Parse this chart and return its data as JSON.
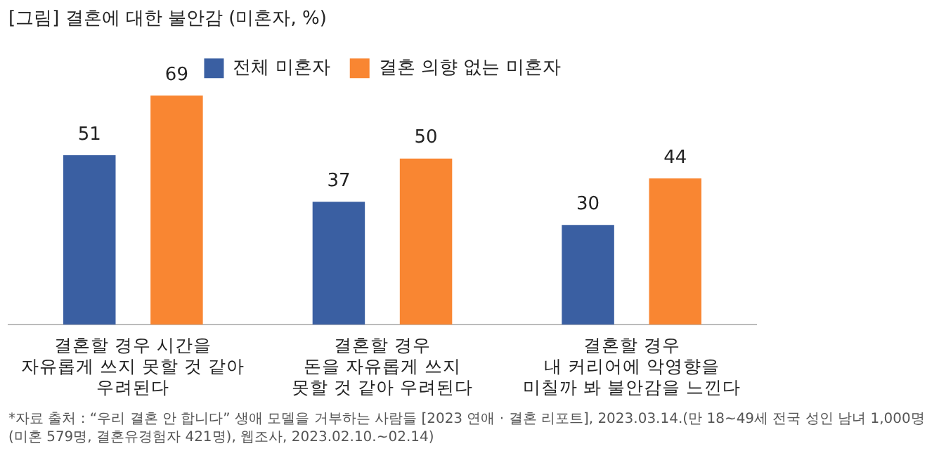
{
  "chart_data": {
    "type": "bar",
    "title": "[그림] 결혼에 대한 불안감 (미혼자, %)",
    "categories": [
      "결혼할 경우 시간을\n자유롭게 쓰지 못할 것 같아\n우려된다",
      "결혼할 경우\n돈을 자유롭게 쓰지\n못할 것 같아 우려된다",
      "결혼할 경우\n내 커리어에 악영향을\n미칠까 봐 불안감을 느낀다"
    ],
    "series": [
      {
        "name": "전체 미혼자",
        "color": "#3a5fa2",
        "values": [
          51,
          37,
          30
        ]
      },
      {
        "name": "결혼 의향 없는 미혼자",
        "color": "#f98632",
        "values": [
          69,
          50,
          44
        ]
      }
    ],
    "data_labels": true,
    "legend": "top",
    "grid": false,
    "tick_labels": "x",
    "annotations": [
      "*자료 출처 : “우리 결혼 안 합니다” 생애 모델을 거부하는 사람들 [2023 연애 · 결혼 리포트], 2023.03.14.(만 18~49세 전국 성인 남녀 1,000명(미혼 579명, 결혼유경험자 421명), 웹조사, 2023.02.10.~02.14)"
    ]
  }
}
